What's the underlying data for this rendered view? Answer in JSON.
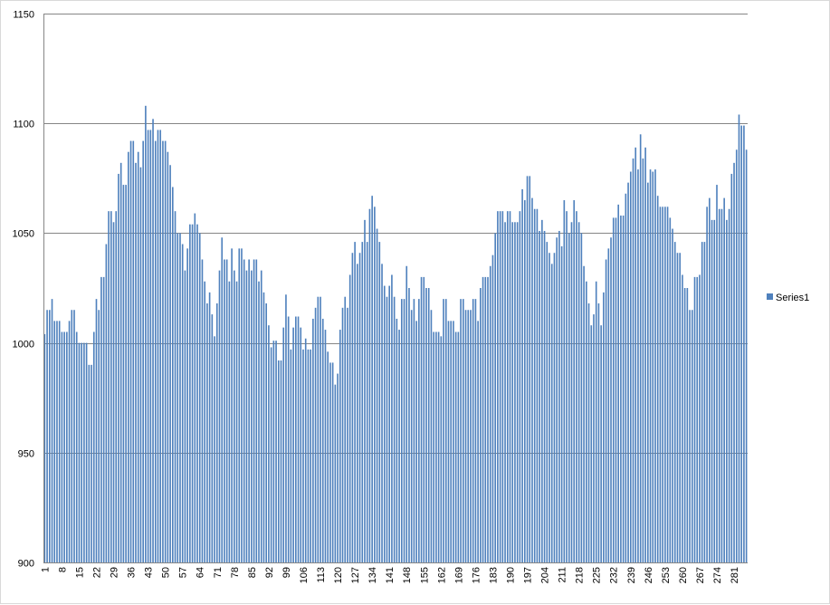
{
  "chart_data": {
    "type": "bar",
    "title": "",
    "xlabel": "",
    "ylabel": "",
    "ylim": [
      900,
      1150
    ],
    "yticks": [
      900,
      950,
      1000,
      1050,
      1100,
      1150
    ],
    "x_tick_every": 7,
    "grid": "horizontal",
    "legend_position": "right",
    "bar_color": "#4f81bd",
    "grid_color": "#868686",
    "series": [
      {
        "name": "Series1",
        "values": [
          1004,
          1015,
          1015,
          1020,
          1010,
          1010,
          1010,
          1005,
          1005,
          1005,
          1010,
          1015,
          1015,
          1005,
          1000,
          1000,
          1000,
          1000,
          990,
          990,
          1005,
          1020,
          1015,
          1030,
          1030,
          1045,
          1060,
          1060,
          1055,
          1060,
          1077,
          1082,
          1072,
          1072,
          1087,
          1092,
          1092,
          1082,
          1087,
          1080,
          1092,
          1108,
          1097,
          1097,
          1102,
          1092,
          1097,
          1097,
          1092,
          1092,
          1087,
          1081,
          1071,
          1060,
          1050,
          1050,
          1045,
          1033,
          1043,
          1054,
          1054,
          1059,
          1054,
          1050,
          1038,
          1028,
          1018,
          1023,
          1013,
          1003,
          1018,
          1033,
          1048,
          1038,
          1038,
          1028,
          1043,
          1033,
          1028,
          1043,
          1043,
          1038,
          1033,
          1038,
          1033,
          1038,
          1038,
          1028,
          1033,
          1023,
          1018,
          1008,
          998,
          1001,
          1001,
          992,
          992,
          1007,
          1022,
          1012,
          997,
          1007,
          1012,
          1012,
          1007,
          997,
          1002,
          997,
          997,
          1011,
          1016,
          1021,
          1021,
          1011,
          1006,
          996,
          991,
          991,
          981,
          986,
          1006,
          1016,
          1021,
          1016,
          1031,
          1041,
          1046,
          1036,
          1041,
          1046,
          1056,
          1046,
          1061,
          1067,
          1062,
          1052,
          1046,
          1036,
          1026,
          1021,
          1026,
          1031,
          1021,
          1011,
          1006,
          1020,
          1020,
          1035,
          1025,
          1015,
          1020,
          1010,
          1020,
          1030,
          1030,
          1025,
          1025,
          1015,
          1005,
          1005,
          1005,
          1003,
          1020,
          1020,
          1010,
          1010,
          1010,
          1005,
          1005,
          1020,
          1020,
          1015,
          1015,
          1015,
          1020,
          1020,
          1010,
          1025,
          1030,
          1030,
          1030,
          1035,
          1040,
          1050,
          1060,
          1060,
          1060,
          1055,
          1060,
          1060,
          1055,
          1055,
          1055,
          1060,
          1070,
          1065,
          1076,
          1076,
          1066,
          1061,
          1061,
          1051,
          1056,
          1051,
          1046,
          1041,
          1036,
          1041,
          1048,
          1051,
          1044,
          1065,
          1060,
          1050,
          1055,
          1065,
          1060,
          1055,
          1050,
          1035,
          1028,
          1018,
          1008,
          1013,
          1028,
          1018,
          1008,
          1023,
          1038,
          1043,
          1048,
          1057,
          1057,
          1063,
          1058,
          1058,
          1068,
          1073,
          1078,
          1084,
          1089,
          1079,
          1095,
          1084,
          1089,
          1073,
          1079,
          1078,
          1079,
          1067,
          1062,
          1062,
          1062,
          1062,
          1057,
          1052,
          1046,
          1041,
          1041,
          1031,
          1025,
          1025,
          1015,
          1015,
          1030,
          1030,
          1031,
          1046,
          1046,
          1062,
          1066,
          1056,
          1056,
          1072,
          1061,
          1061,
          1066,
          1056,
          1061,
          1077,
          1082,
          1088,
          1104,
          1099,
          1099,
          1088
        ]
      }
    ]
  }
}
